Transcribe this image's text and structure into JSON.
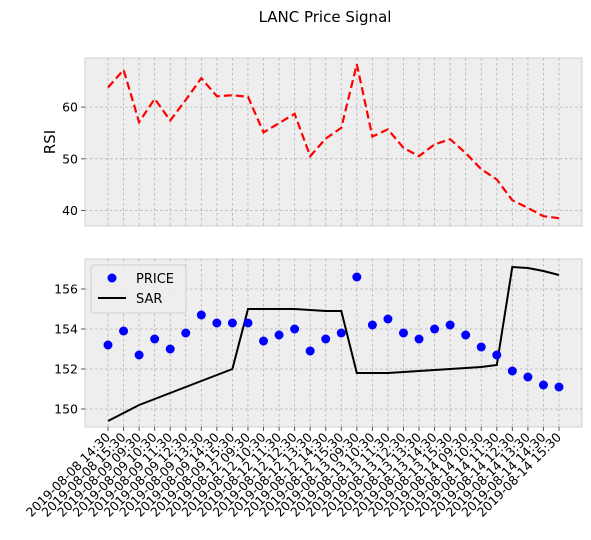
{
  "chart_data": {
    "type": "line",
    "title": "LANC Price Signal",
    "x": [
      "2019-08-08 14:30",
      "2019-08-08 15:30",
      "2019-08-09 09:30",
      "2019-08-09 10:30",
      "2019-08-09 11:30",
      "2019-08-09 12:30",
      "2019-08-09 13:30",
      "2019-08-09 14:30",
      "2019-08-09 15:30",
      "2019-08-12 09:30",
      "2019-08-12 10:30",
      "2019-08-12 11:30",
      "2019-08-12 12:30",
      "2019-08-12 13:30",
      "2019-08-12 14:30",
      "2019-08-12 15:30",
      "2019-08-13 09:30",
      "2019-08-13 10:30",
      "2019-08-13 11:30",
      "2019-08-13 12:30",
      "2019-08-13 13:30",
      "2019-08-13 14:30",
      "2019-08-13 15:30",
      "2019-08-14 09:30",
      "2019-08-14 10:30",
      "2019-08-14 11:30",
      "2019-08-14 12:30",
      "2019-08-14 13:30",
      "2019-08-14 14:30",
      "2019-08-14 15:30"
    ],
    "panels": [
      {
        "ylabel": "RSI",
        "ylim": [
          37,
          69.5
        ],
        "yticks": [
          40,
          50,
          60
        ],
        "grid": true,
        "series": [
          {
            "values": [
              63.8,
              67.2,
              57.1,
              61.6,
              57.4,
              61.4,
              65.6,
              62.1,
              62.3,
              62.0,
              55.1,
              56.9,
              58.7,
              50.5,
              53.9,
              56.0,
              68.3,
              54.3,
              55.7,
              52.1,
              50.5,
              52.8,
              53.8,
              51.1,
              48.0,
              46.0,
              42.0,
              40.5,
              38.9,
              38.5
            ],
            "color": "#ff0000",
            "style": "dashed"
          }
        ]
      },
      {
        "ylim": [
          149.1,
          157.5
        ],
        "yticks": [
          150,
          152,
          154,
          156
        ],
        "grid": true,
        "legend_position": "top-left",
        "series": [
          {
            "name": "PRICE",
            "type": "scatter",
            "color": "#0000ff",
            "values": [
              153.2,
              153.9,
              152.7,
              153.5,
              153.0,
              153.8,
              154.7,
              154.3,
              154.3,
              154.3,
              153.4,
              153.7,
              154.0,
              152.9,
              153.5,
              153.8,
              156.6,
              154.2,
              154.5,
              153.8,
              153.5,
              154.0,
              154.2,
              153.7,
              153.1,
              152.7,
              151.9,
              151.6,
              151.2,
              151.1
            ]
          },
          {
            "name": "SAR",
            "type": "line",
            "color": "#000000",
            "values": [
              149.4,
              149.8,
              150.2,
              150.5,
              150.8,
              151.1,
              151.4,
              151.7,
              152.0,
              155.0,
              155.0,
              155.0,
              155.0,
              154.95,
              154.9,
              154.9,
              151.8,
              151.8,
              151.8,
              151.85,
              151.9,
              151.95,
              152.0,
              152.05,
              152.1,
              152.2,
              157.1,
              157.05,
              156.9,
              156.7
            ]
          }
        ]
      }
    ]
  }
}
